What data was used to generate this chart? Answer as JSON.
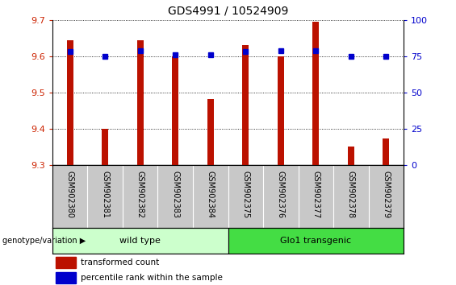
{
  "title": "GDS4991 / 10524909",
  "samples": [
    "GSM902380",
    "GSM902381",
    "GSM902382",
    "GSM902383",
    "GSM902384",
    "GSM902375",
    "GSM902376",
    "GSM902377",
    "GSM902378",
    "GSM902379"
  ],
  "transformed_counts": [
    9.645,
    9.4,
    9.645,
    9.6,
    9.483,
    9.63,
    9.6,
    9.695,
    9.352,
    9.373
  ],
  "percentile_ranks": [
    78,
    75,
    79,
    76,
    76,
    78,
    79,
    79,
    75,
    75
  ],
  "ylim_left": [
    9.3,
    9.7
  ],
  "ylim_right": [
    0,
    100
  ],
  "yticks_left": [
    9.3,
    9.4,
    9.5,
    9.6,
    9.7
  ],
  "yticks_right": [
    0,
    25,
    50,
    75,
    100
  ],
  "bar_color": "#bb1100",
  "dot_color": "#0000cc",
  "groups": [
    {
      "label": "wild type",
      "start": 0,
      "end": 5,
      "color": "#ccffcc"
    },
    {
      "label": "Glo1 transgenic",
      "start": 5,
      "end": 10,
      "color": "#44dd44"
    }
  ],
  "group_label": "genotype/variation",
  "legend_items": [
    {
      "color": "#bb1100",
      "label": "transformed count"
    },
    {
      "color": "#0000cc",
      "label": "percentile rank within the sample"
    }
  ],
  "tick_label_area_color": "#c8c8c8",
  "title_fontsize": 10,
  "bar_width": 0.18
}
